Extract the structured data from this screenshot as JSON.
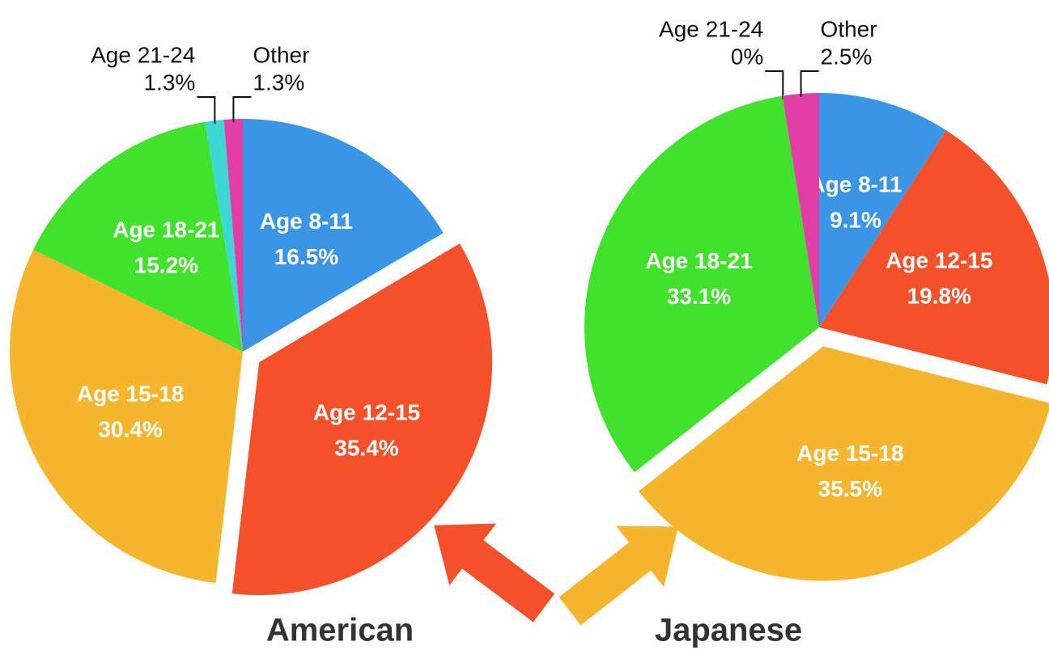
{
  "chart_data": [
    {
      "type": "pie",
      "title": "American",
      "categories": [
        "Age 8-11",
        "Age 12-15",
        "Age 15-18",
        "Age 18-21",
        "Age 21-24",
        "Other"
      ],
      "values": [
        16.5,
        35.4,
        30.4,
        15.2,
        1.3,
        1.3
      ],
      "value_labels": [
        "16.5%",
        "35.4%",
        "30.4%",
        "15.2%",
        "1.3%",
        "1.3%"
      ],
      "colors": [
        "#3a95e6",
        "#f4502a",
        "#f5b52c",
        "#40e22c",
        "#3cd8d4",
        "#e23fa6"
      ]
    },
    {
      "type": "pie",
      "title": "Japanese",
      "categories": [
        "Age 8-11",
        "Age 12-15",
        "Age 15-18",
        "Age 18-21",
        "Age 21-24",
        "Other"
      ],
      "values": [
        9.1,
        19.8,
        35.5,
        33.1,
        0,
        2.5
      ],
      "value_labels": [
        "9.1%",
        "19.8%",
        "35.5%",
        "33.1%",
        "0%",
        "2.5%"
      ],
      "colors": [
        "#3a95e6",
        "#f4502a",
        "#f5b52c",
        "#40e22c",
        "#3cd8d4",
        "#e23fa6"
      ]
    }
  ]
}
